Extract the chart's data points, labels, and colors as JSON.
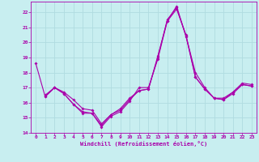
{
  "xlabel": "Windchill (Refroidissement éolien,°C)",
  "background_color": "#c8eef0",
  "grid_color": "#b0dce0",
  "line_color": "#aa00aa",
  "xlim": [
    -0.5,
    23.5
  ],
  "ylim": [
    14,
    22.7
  ],
  "yticks": [
    14,
    15,
    16,
    17,
    18,
    19,
    20,
    21,
    22
  ],
  "xticks": [
    0,
    1,
    2,
    3,
    4,
    5,
    6,
    7,
    8,
    9,
    10,
    11,
    12,
    13,
    14,
    15,
    16,
    17,
    18,
    19,
    20,
    21,
    22,
    23
  ],
  "series": [
    {
      "x": [
        0,
        1,
        2,
        3,
        4,
        5,
        6,
        7,
        8,
        9,
        10,
        11,
        12,
        13,
        14,
        15,
        16,
        17,
        18,
        19,
        20,
        21,
        22,
        23
      ],
      "y": [
        18.6,
        16.4,
        17.0,
        16.6,
        15.9,
        15.3,
        15.3,
        14.4,
        15.1,
        15.4,
        16.1,
        17.0,
        17.0,
        18.9,
        21.4,
        22.4,
        20.4,
        18.0,
        17.0,
        16.3,
        16.2,
        16.7,
        17.3,
        17.2
      ]
    },
    {
      "x": [
        1,
        2,
        3,
        4,
        5,
        6,
        7,
        8,
        9,
        10,
        11,
        12,
        13,
        14,
        15,
        16,
        17,
        18,
        19,
        20,
        21,
        22,
        23
      ],
      "y": [
        16.5,
        17.0,
        16.7,
        16.2,
        15.6,
        15.5,
        14.6,
        15.2,
        15.6,
        16.3,
        16.8,
        16.9,
        19.0,
        21.5,
        22.3,
        20.4,
        17.7,
        16.9,
        16.3,
        16.2,
        16.6,
        17.2,
        17.1
      ]
    },
    {
      "x": [
        1,
        2,
        3,
        4,
        5,
        6,
        7,
        8,
        9,
        10,
        11,
        12,
        13,
        14,
        15,
        16,
        17,
        18,
        19,
        20,
        21,
        22,
        23
      ],
      "y": [
        16.4,
        17.0,
        16.6,
        15.9,
        15.4,
        15.3,
        14.5,
        15.2,
        15.5,
        16.2,
        16.8,
        16.9,
        19.1,
        21.4,
        22.2,
        20.5,
        17.7,
        16.9,
        16.3,
        16.3,
        16.7,
        17.2,
        17.1
      ]
    }
  ]
}
